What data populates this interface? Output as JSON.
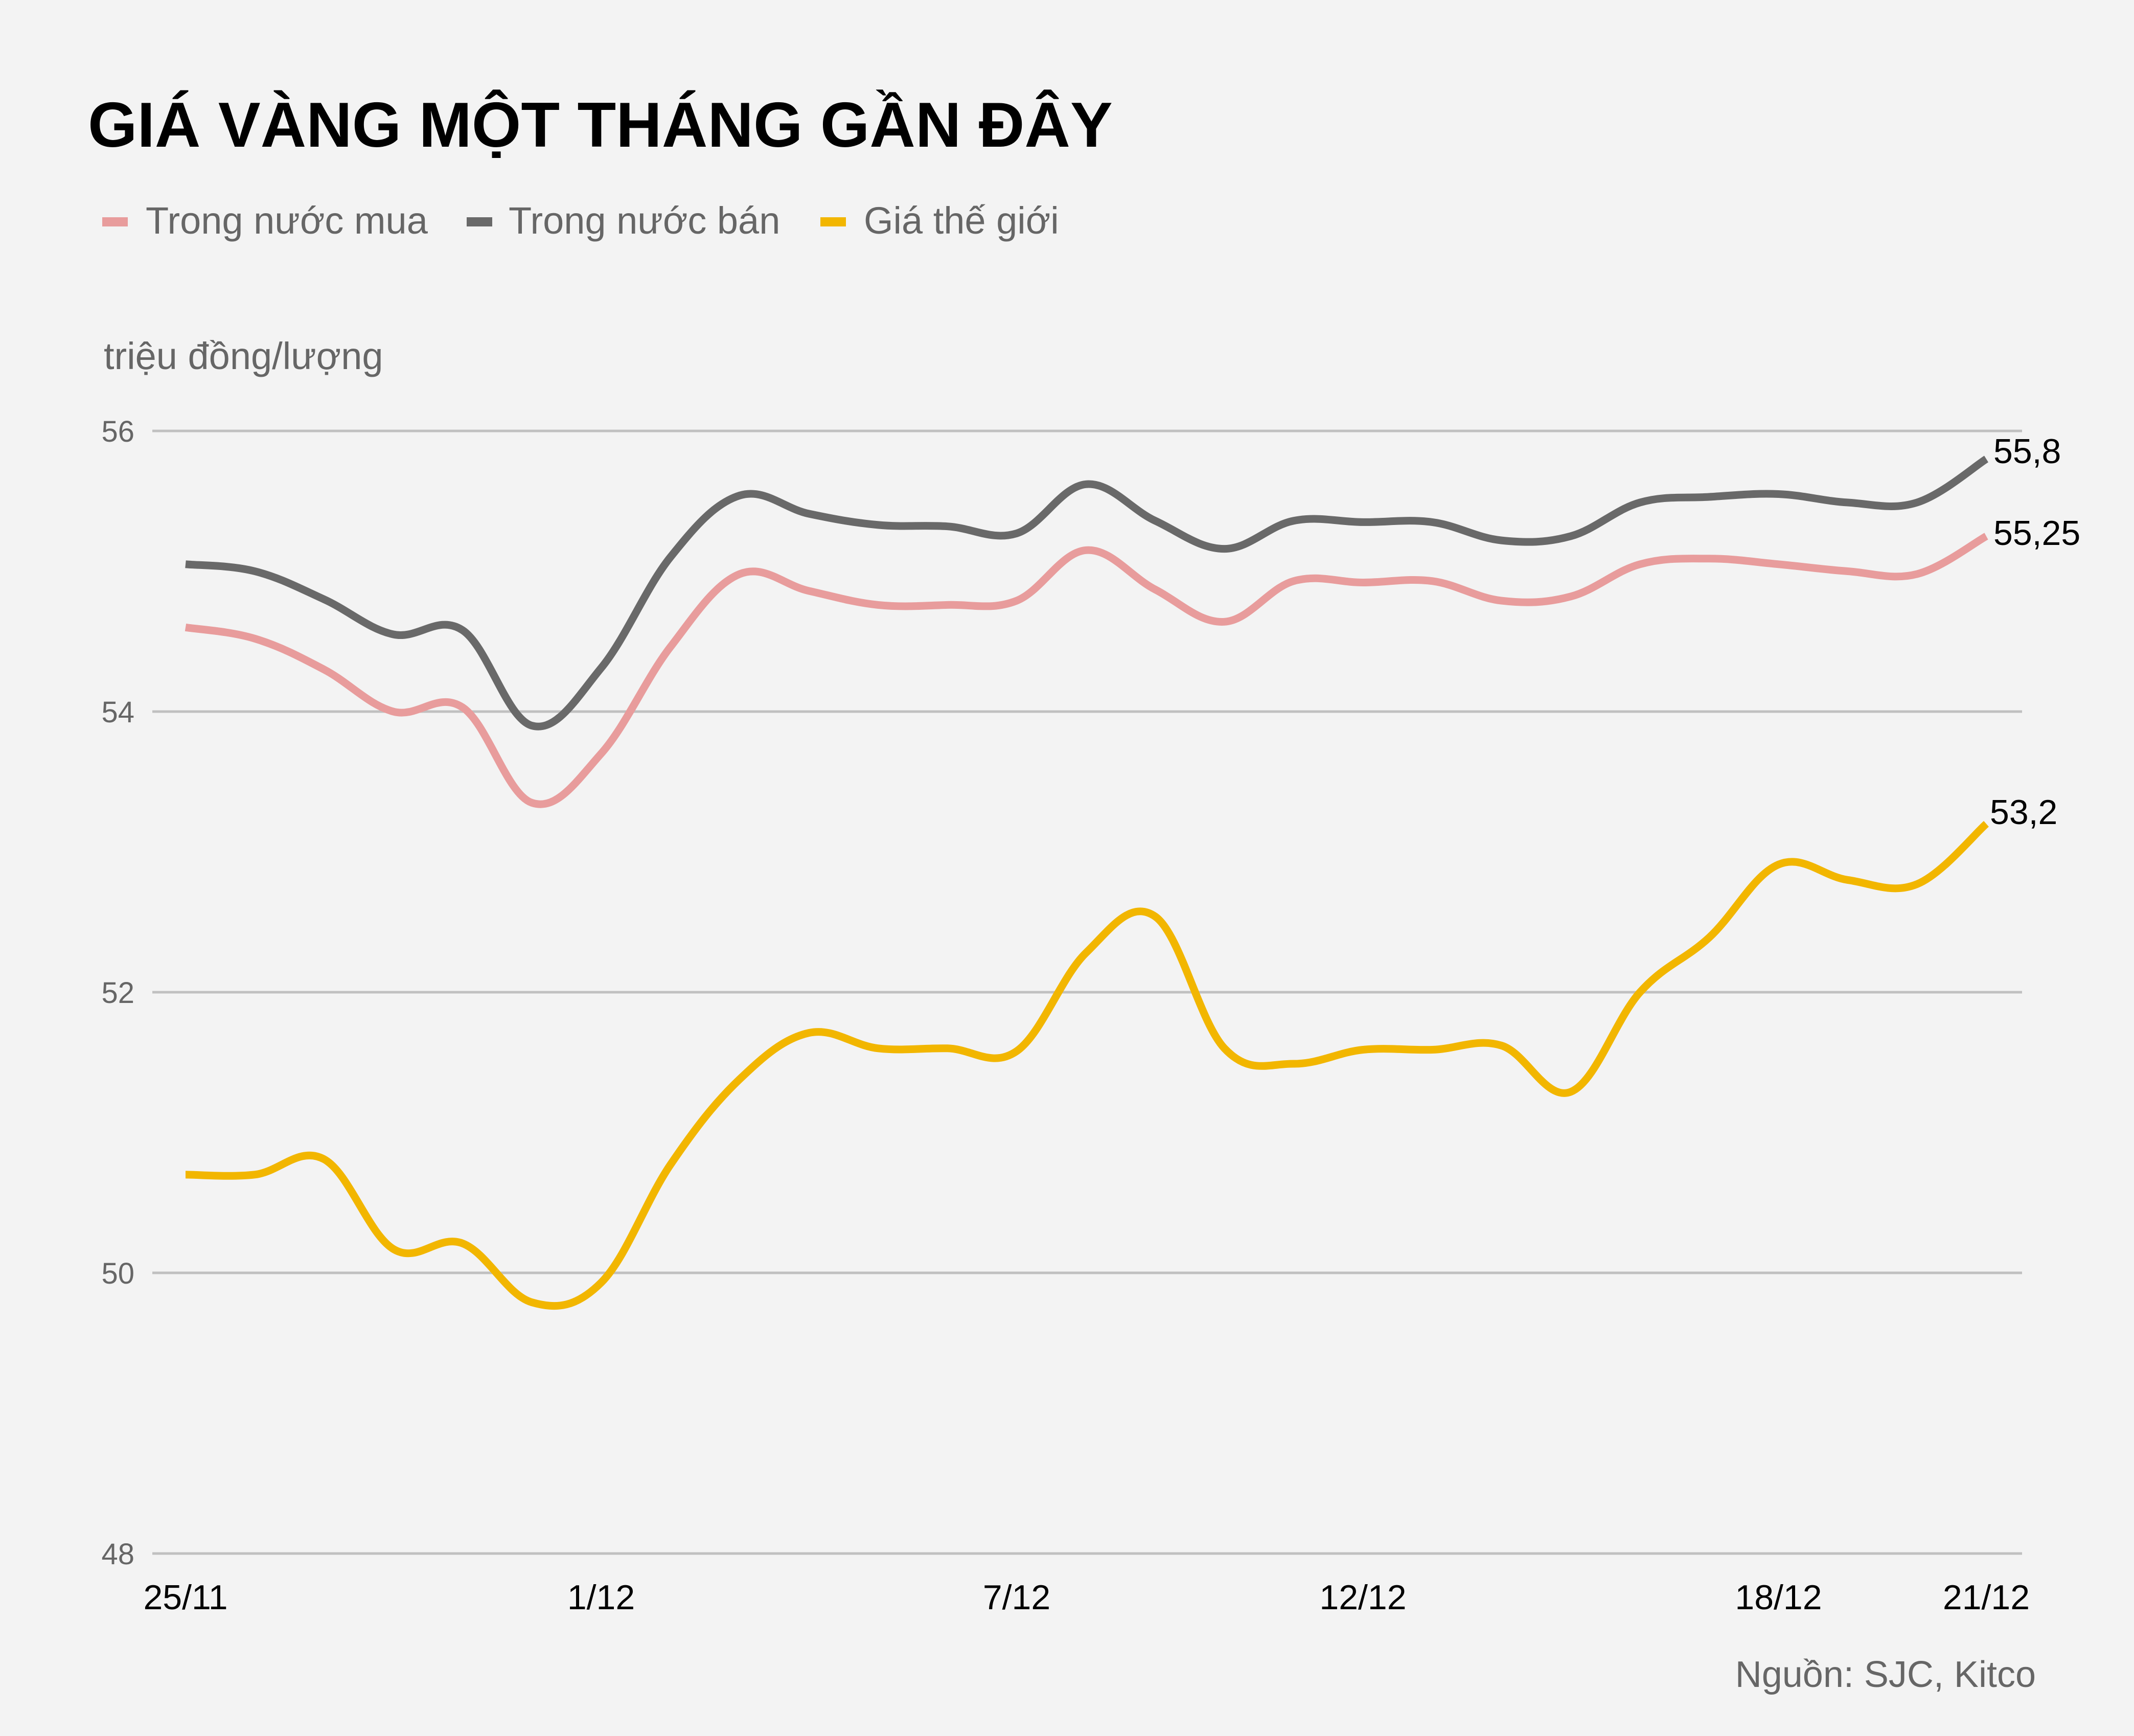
{
  "title": "GIÁ VÀNG MỘT THÁNG GẦN ĐÂY",
  "legend": [
    {
      "label": "Trong nước mua",
      "color": "#e89c9c"
    },
    {
      "label": "Trong nước bán",
      "color": "#696969"
    },
    {
      "label": "Giá thế giới",
      "color": "#f2b600"
    }
  ],
  "unit_label": "triệu đồng/lượng",
  "source": "Nguồn: SJC, Kitco",
  "end_labels": {
    "sell": "55,8",
    "buy": "55,25",
    "world": "53,2"
  },
  "chart_data": {
    "type": "line",
    "title": "GIÁ VÀNG MỘT THÁNG GẦN ĐÂY",
    "xlabel": "",
    "ylabel": "triệu đồng/lượng",
    "ylim": [
      48,
      56
    ],
    "yticks": [
      48,
      50,
      52,
      54,
      56
    ],
    "grid": true,
    "legend_position": "top-left",
    "x": [
      "25/11",
      "26/11",
      "27/11",
      "28/11",
      "29/11",
      "30/11",
      "1/12",
      "2/12",
      "3/12",
      "4/12",
      "5/12",
      "6/12",
      "7/12",
      "8/12",
      "9/12",
      "10/12",
      "11/12",
      "12/12",
      "13/12",
      "14/12",
      "15/12",
      "16/12",
      "17/12",
      "18/12",
      "19/12",
      "20/12",
      "21/12"
    ],
    "xtick_labels": [
      "25/11",
      "1/12",
      "7/12",
      "12/12",
      "18/12",
      "21/12"
    ],
    "series": [
      {
        "name": "Trong nước mua",
        "color": "#e89c9c",
        "values": [
          54.6,
          54.52,
          54.3,
          54.0,
          54.03,
          53.35,
          53.7,
          54.46,
          54.98,
          54.86,
          54.76,
          54.76,
          54.79,
          55.15,
          54.87,
          54.64,
          54.93,
          54.92,
          54.93,
          54.79,
          54.82,
          55.05,
          55.09,
          55.05,
          55.0,
          54.98,
          55.25
        ]
      },
      {
        "name": "Trong nước bán",
        "color": "#696969",
        "values": [
          55.05,
          55.0,
          54.8,
          54.55,
          54.58,
          53.9,
          54.31,
          55.1,
          55.54,
          55.41,
          55.33,
          55.32,
          55.27,
          55.62,
          55.36,
          55.16,
          55.36,
          55.35,
          55.35,
          55.22,
          55.25,
          55.49,
          55.53,
          55.55,
          55.49,
          55.49,
          55.8
        ]
      },
      {
        "name": "Giá thế giới",
        "color": "#f2b600",
        "values": [
          50.7,
          50.7,
          50.81,
          50.17,
          50.21,
          49.79,
          49.93,
          50.77,
          51.38,
          51.71,
          51.6,
          51.6,
          51.58,
          52.28,
          52.54,
          51.6,
          51.49,
          51.59,
          51.59,
          51.62,
          51.29,
          52.0,
          52.39,
          52.91,
          52.8,
          52.77,
          53.2
        ]
      }
    ],
    "annotations": [
      {
        "series": "Trong nước bán",
        "x": "21/12",
        "text": "55,8"
      },
      {
        "series": "Trong nước mua",
        "x": "21/12",
        "text": "55,25"
      },
      {
        "series": "Giá thế giới",
        "x": "21/12",
        "text": "53,2"
      }
    ]
  }
}
